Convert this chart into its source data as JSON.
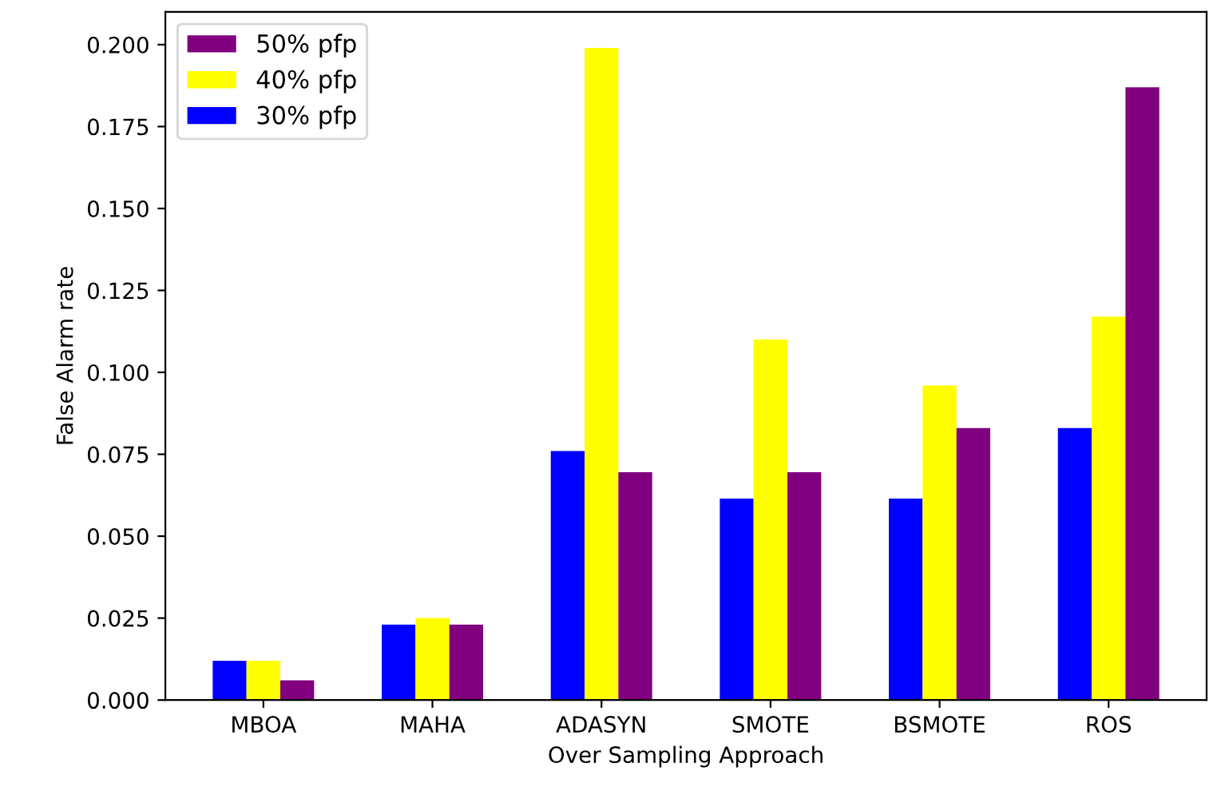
{
  "chart_data": {
    "type": "bar",
    "xlabel": "Over Sampling Approach",
    "ylabel": "False Alarm rate",
    "categories": [
      "MBOA",
      "MAHA",
      "ADASYN",
      "SMOTE",
      "BSMOTE",
      "ROS"
    ],
    "series": [
      {
        "name": "30% pfp",
        "color": "#0000ff",
        "values": [
          0.012,
          0.023,
          0.076,
          0.0615,
          0.0615,
          0.083
        ]
      },
      {
        "name": "40% pfp",
        "color": "#ffff00",
        "values": [
          0.012,
          0.025,
          0.199,
          0.11,
          0.096,
          0.117
        ]
      },
      {
        "name": "50% pfp",
        "color": "#800080",
        "values": [
          0.006,
          0.023,
          0.0695,
          0.0695,
          0.083,
          0.187
        ]
      }
    ],
    "ylim": [
      0,
      0.21
    ],
    "yticks": [
      {
        "value": 0,
        "label": "0.000"
      },
      {
        "value": 0.025,
        "label": "0.025"
      },
      {
        "value": 0.05,
        "label": "0.050"
      },
      {
        "value": 0.075,
        "label": "0.075"
      },
      {
        "value": 0.1,
        "label": "0.100"
      },
      {
        "value": 0.125,
        "label": "0.125"
      },
      {
        "value": 0.15,
        "label": "0.150"
      },
      {
        "value": 0.175,
        "label": "0.175"
      },
      {
        "value": 0.2,
        "label": "0.200"
      }
    ],
    "legend": "upper left"
  }
}
